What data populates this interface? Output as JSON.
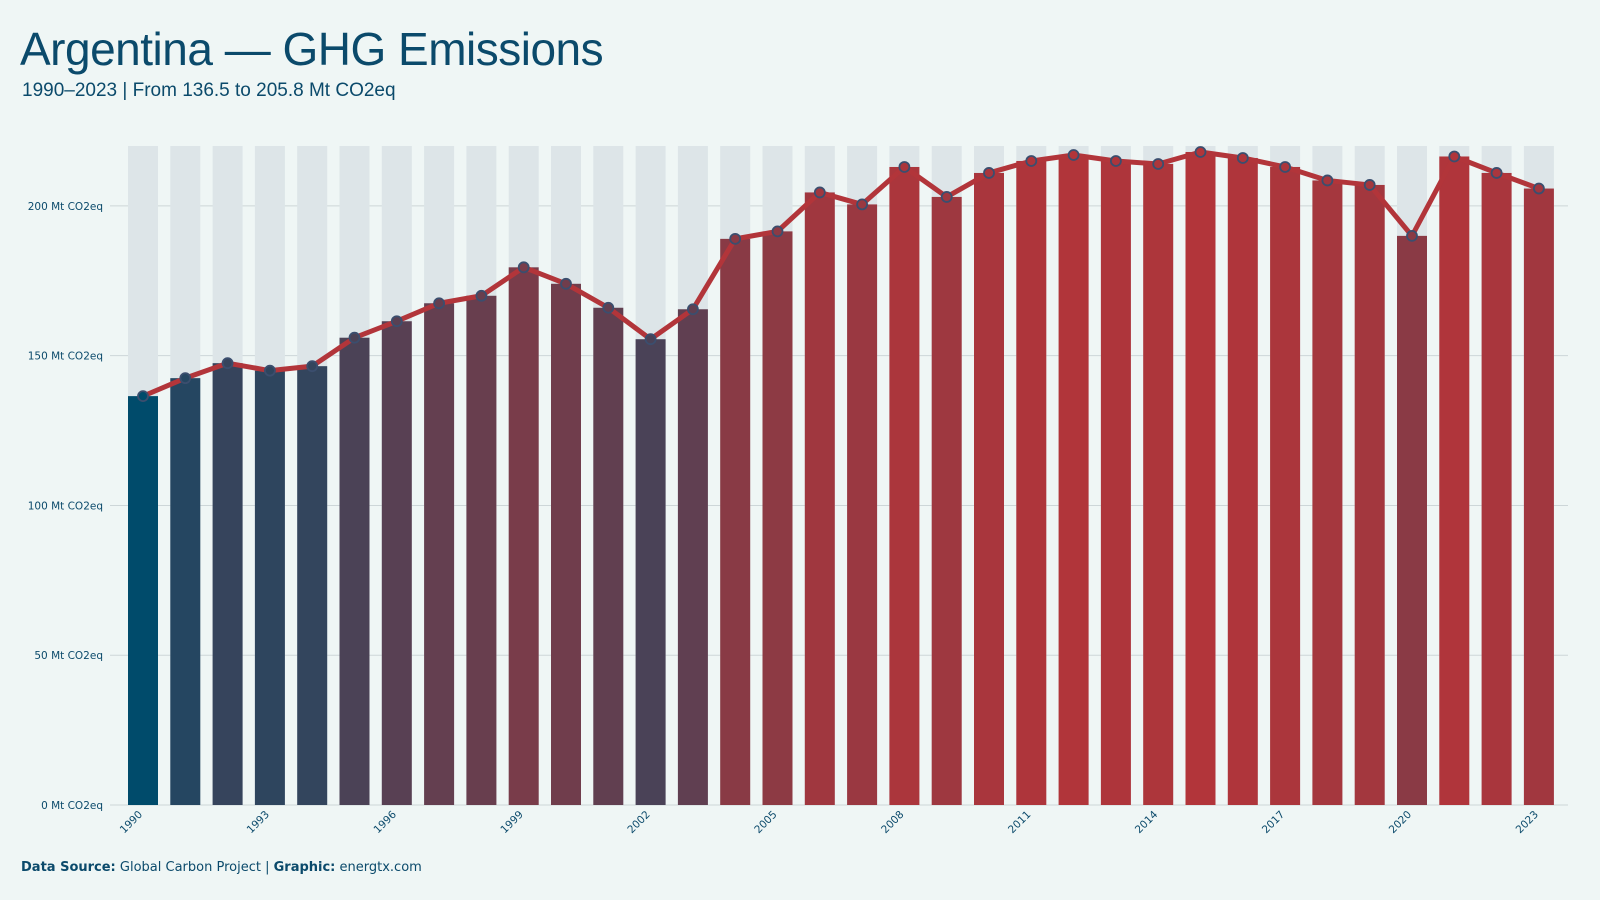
{
  "header": {
    "title": "Argentina — GHG Emissions",
    "subtitle": "1990–2023 | From 136.5 to 205.8 Mt CO2eq"
  },
  "footer": {
    "source_label": "Data Source:",
    "source_value": "Global Carbon Project |",
    "graphic_label": "Graphic:",
    "graphic_value": "energtx.com"
  },
  "colors": {
    "background": "#eff6f5",
    "text": "#0b4a6b",
    "low": "#004b6b",
    "high": "#b2353a",
    "line": "#b2353a",
    "marker": "#3b4e6e",
    "column_bg": "#dde5e8",
    "grid": "#cdd6d8"
  },
  "chart_data": {
    "type": "bar",
    "title": "Argentina — GHG Emissions",
    "subtitle": "1990–2023 | From 136.5 to 205.8 Mt CO2eq",
    "xlabel": "",
    "ylabel": "",
    "ylim": [
      0,
      220
    ],
    "grid": true,
    "y_ticks": [
      {
        "value": 0,
        "label": "0 Mt CO2eq"
      },
      {
        "value": 50,
        "label": "50 Mt CO2eq"
      },
      {
        "value": 100,
        "label": "100 Mt CO2eq"
      },
      {
        "value": 150,
        "label": "150 Mt CO2eq"
      },
      {
        "value": 200,
        "label": "200 Mt CO2eq"
      }
    ],
    "x_tick_labels": [
      "1990",
      "1993",
      "1996",
      "1999",
      "2002",
      "2005",
      "2008",
      "2011",
      "2014",
      "2017",
      "2020",
      "2023"
    ],
    "categories": [
      "1990",
      "1991",
      "1992",
      "1993",
      "1994",
      "1995",
      "1996",
      "1997",
      "1998",
      "1999",
      "2000",
      "2001",
      "2002",
      "2003",
      "2004",
      "2005",
      "2006",
      "2007",
      "2008",
      "2009",
      "2010",
      "2011",
      "2012",
      "2013",
      "2014",
      "2015",
      "2016",
      "2017",
      "2018",
      "2019",
      "2020",
      "2021",
      "2022",
      "2023"
    ],
    "values": [
      136.5,
      142.5,
      147.5,
      145.0,
      146.5,
      156.0,
      161.5,
      167.5,
      170.0,
      179.5,
      174.0,
      166.0,
      155.5,
      165.5,
      189.0,
      191.5,
      204.5,
      200.5,
      213.0,
      203.0,
      211.0,
      215.0,
      217.0,
      215.0,
      214.0,
      218.0,
      216.0,
      213.0,
      208.5,
      207.0,
      190.0,
      216.5,
      211.0,
      205.8
    ]
  }
}
